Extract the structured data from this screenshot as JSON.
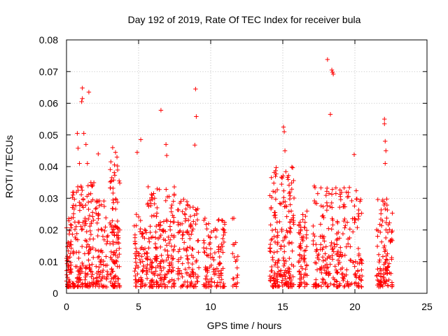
{
  "chart_data": {
    "type": "scatter",
    "title": "Day 192 of 2019, Rate Of TEC Index for receiver bula",
    "xlabel": "GPS time / hours",
    "ylabel": "ROTI / TECUs",
    "xlim": [
      0,
      25
    ],
    "ylim": [
      0,
      0.08
    ],
    "grid": true,
    "legend": "none",
    "marker": "plus",
    "color": "#ff0000",
    "x_ticks": [
      0,
      5,
      10,
      15,
      20,
      25
    ],
    "x_tick_labels": [
      "0",
      "5",
      "10",
      "15",
      "20",
      "25"
    ],
    "y_ticks": [
      0,
      0.01,
      0.02,
      0.03,
      0.04,
      0.05,
      0.06,
      0.07,
      0.08
    ],
    "y_tick_labels": [
      "0",
      "0.01",
      "0.02",
      "0.03",
      "0.04",
      "0.05",
      "0.06",
      "0.07",
      "0.08"
    ],
    "series": [
      {
        "name": "ROTI",
        "clusters": [
          {
            "x_start": 0.0,
            "x_end": 0.35,
            "y_low": 0.002,
            "y_high": 0.024,
            "count": 60
          },
          {
            "x_start": 0.4,
            "x_end": 1.9,
            "y_low": 0.002,
            "y_high": 0.035,
            "count": 170
          },
          {
            "x_start": 2.0,
            "x_end": 2.9,
            "y_low": 0.002,
            "y_high": 0.03,
            "count": 80
          },
          {
            "x_start": 3.0,
            "x_end": 3.7,
            "y_low": 0.002,
            "y_high": 0.042,
            "count": 110
          },
          {
            "x_start": 4.7,
            "x_end": 5.6,
            "y_low": 0.002,
            "y_high": 0.025,
            "count": 80
          },
          {
            "x_start": 5.6,
            "x_end": 7.5,
            "y_low": 0.002,
            "y_high": 0.034,
            "count": 190
          },
          {
            "x_start": 7.7,
            "x_end": 9.2,
            "y_low": 0.002,
            "y_high": 0.03,
            "count": 120
          },
          {
            "x_start": 9.5,
            "x_end": 11.0,
            "y_low": 0.002,
            "y_high": 0.024,
            "count": 110
          },
          {
            "x_start": 11.5,
            "x_end": 11.9,
            "y_low": 0.002,
            "y_high": 0.024,
            "count": 20
          },
          {
            "x_start": 14.1,
            "x_end": 15.8,
            "y_low": 0.002,
            "y_high": 0.04,
            "count": 200
          },
          {
            "x_start": 16.1,
            "x_end": 16.7,
            "y_low": 0.002,
            "y_high": 0.026,
            "count": 70
          },
          {
            "x_start": 17.1,
            "x_end": 20.5,
            "y_low": 0.002,
            "y_high": 0.034,
            "count": 260
          },
          {
            "x_start": 21.5,
            "x_end": 22.6,
            "y_low": 0.002,
            "y_high": 0.03,
            "count": 110
          }
        ],
        "outliers": [
          [
            1.1,
            0.0648
          ],
          [
            1.05,
            0.0605
          ],
          [
            1.1,
            0.0615
          ],
          [
            1.55,
            0.0635
          ],
          [
            0.75,
            0.0505
          ],
          [
            1.2,
            0.0505
          ],
          [
            1.35,
            0.047
          ],
          [
            0.8,
            0.0458
          ],
          [
            0.9,
            0.041
          ],
          [
            1.45,
            0.041
          ],
          [
            2.2,
            0.044
          ],
          [
            3.2,
            0.046
          ],
          [
            3.4,
            0.0445
          ],
          [
            3.5,
            0.043
          ],
          [
            4.9,
            0.0445
          ],
          [
            5.15,
            0.0485
          ],
          [
            6.55,
            0.0578
          ],
          [
            6.9,
            0.047
          ],
          [
            6.95,
            0.0435
          ],
          [
            8.95,
            0.0645
          ],
          [
            9.0,
            0.0558
          ],
          [
            8.9,
            0.0468
          ],
          [
            15.05,
            0.0525
          ],
          [
            15.1,
            0.051
          ],
          [
            15.15,
            0.045
          ],
          [
            18.1,
            0.0738
          ],
          [
            18.4,
            0.0705
          ],
          [
            18.45,
            0.0698
          ],
          [
            18.5,
            0.0692
          ],
          [
            18.3,
            0.0565
          ],
          [
            19.95,
            0.0438
          ],
          [
            22.05,
            0.055
          ],
          [
            22.05,
            0.0535
          ],
          [
            22.1,
            0.048
          ],
          [
            22.15,
            0.045
          ],
          [
            22.1,
            0.041
          ]
        ]
      }
    ]
  }
}
